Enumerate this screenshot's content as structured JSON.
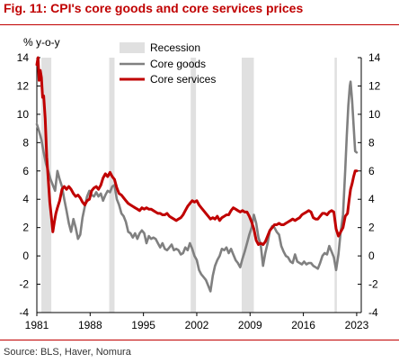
{
  "header": {
    "title": "Fig. 11: CPI's core goods and core services prices"
  },
  "footer": {
    "source": "Source: BLS, Haver, Nomura"
  },
  "chart_data": {
    "type": "line",
    "title": "Fig. 11: CPI's core goods and core services prices",
    "ylabel": "% y-o-y",
    "xlabel": "",
    "ylim": [
      -4,
      14
    ],
    "xlim": [
      1981,
      2023.6
    ],
    "y_ticks": [
      -4,
      -2,
      0,
      2,
      4,
      6,
      8,
      10,
      12,
      14
    ],
    "x_ticks": [
      1981,
      1988,
      1995,
      2002,
      2009,
      2016,
      2023
    ],
    "grid": false,
    "legend": "top-center",
    "recessions": [
      {
        "start": 1981.6,
        "end": 1982.9
      },
      {
        "start": 1990.5,
        "end": 1991.2
      },
      {
        "start": 2001.2,
        "end": 2001.9
      },
      {
        "start": 2007.9,
        "end": 2009.5
      },
      {
        "start": 2020.1,
        "end": 2020.4
      }
    ],
    "series": [
      {
        "name": "Core goods",
        "color": "#808080",
        "points": [
          [
            1981.0,
            9.3
          ],
          [
            1981.3,
            8.8
          ],
          [
            1981.6,
            8.2
          ],
          [
            1981.9,
            7.3
          ],
          [
            1982.2,
            6.5
          ],
          [
            1982.5,
            6.0
          ],
          [
            1982.8,
            5.4
          ],
          [
            1983.1,
            5.0
          ],
          [
            1983.4,
            4.6
          ],
          [
            1983.7,
            6.0
          ],
          [
            1984.0,
            5.4
          ],
          [
            1984.3,
            4.9
          ],
          [
            1984.6,
            4.0
          ],
          [
            1984.9,
            3.2
          ],
          [
            1985.2,
            2.3
          ],
          [
            1985.5,
            1.7
          ],
          [
            1985.8,
            2.6
          ],
          [
            1986.1,
            2.0
          ],
          [
            1986.4,
            1.2
          ],
          [
            1986.7,
            1.5
          ],
          [
            1987.0,
            2.7
          ],
          [
            1987.3,
            3.5
          ],
          [
            1987.6,
            4.2
          ],
          [
            1987.9,
            4.6
          ],
          [
            1988.2,
            4.3
          ],
          [
            1988.5,
            4.2
          ],
          [
            1988.8,
            4.5
          ],
          [
            1989.1,
            4.2
          ],
          [
            1989.4,
            4.4
          ],
          [
            1989.7,
            3.9
          ],
          [
            1990.0,
            4.3
          ],
          [
            1990.3,
            4.6
          ],
          [
            1990.6,
            4.5
          ],
          [
            1990.9,
            4.9
          ],
          [
            1991.2,
            5.0
          ],
          [
            1991.5,
            4.0
          ],
          [
            1991.8,
            3.6
          ],
          [
            1992.1,
            3.0
          ],
          [
            1992.4,
            2.8
          ],
          [
            1992.7,
            2.4
          ],
          [
            1993.0,
            1.7
          ],
          [
            1993.3,
            1.6
          ],
          [
            1993.6,
            1.3
          ],
          [
            1993.9,
            1.6
          ],
          [
            1994.2,
            1.2
          ],
          [
            1994.5,
            1.6
          ],
          [
            1994.8,
            1.8
          ],
          [
            1995.1,
            1.6
          ],
          [
            1995.4,
            0.9
          ],
          [
            1995.7,
            1.4
          ],
          [
            1996.0,
            1.2
          ],
          [
            1996.3,
            1.3
          ],
          [
            1996.6,
            1.2
          ],
          [
            1996.9,
            0.9
          ],
          [
            1997.2,
            0.6
          ],
          [
            1997.5,
            0.9
          ],
          [
            1997.8,
            0.5
          ],
          [
            1998.1,
            0.4
          ],
          [
            1998.4,
            0.6
          ],
          [
            1998.7,
            0.8
          ],
          [
            1999.0,
            0.4
          ],
          [
            1999.3,
            0.5
          ],
          [
            1999.6,
            0.4
          ],
          [
            1999.9,
            0.1
          ],
          [
            2000.2,
            0.2
          ],
          [
            2000.5,
            0.6
          ],
          [
            2000.8,
            0.4
          ],
          [
            2001.1,
            0.9
          ],
          [
            2001.4,
            0.5
          ],
          [
            2001.7,
            0.0
          ],
          [
            2002.0,
            -0.3
          ],
          [
            2002.3,
            -1.0
          ],
          [
            2002.6,
            -1.3
          ],
          [
            2002.9,
            -1.5
          ],
          [
            2003.2,
            -1.7
          ],
          [
            2003.5,
            -2.1
          ],
          [
            2003.8,
            -2.5
          ],
          [
            2004.1,
            -1.4
          ],
          [
            2004.4,
            -0.7
          ],
          [
            2004.7,
            -0.3
          ],
          [
            2005.0,
            0.0
          ],
          [
            2005.3,
            0.5
          ],
          [
            2005.6,
            0.4
          ],
          [
            2005.9,
            0.6
          ],
          [
            2006.2,
            0.2
          ],
          [
            2006.5,
            0.5
          ],
          [
            2006.8,
            0.1
          ],
          [
            2007.1,
            -0.3
          ],
          [
            2007.4,
            -0.5
          ],
          [
            2007.7,
            -0.8
          ],
          [
            2008.0,
            -0.2
          ],
          [
            2008.3,
            0.3
          ],
          [
            2008.6,
            0.9
          ],
          [
            2008.9,
            1.5
          ],
          [
            2009.2,
            2.0
          ],
          [
            2009.5,
            2.9
          ],
          [
            2009.8,
            2.3
          ],
          [
            2010.1,
            1.3
          ],
          [
            2010.4,
            0.8
          ],
          [
            2010.7,
            -0.7
          ],
          [
            2011.0,
            0.2
          ],
          [
            2011.3,
            0.9
          ],
          [
            2011.6,
            1.8
          ],
          [
            2011.9,
            2.1
          ],
          [
            2012.2,
            2.0
          ],
          [
            2012.5,
            1.7
          ],
          [
            2012.8,
            1.5
          ],
          [
            2013.1,
            0.7
          ],
          [
            2013.4,
            0.3
          ],
          [
            2013.7,
            0.0
          ],
          [
            2014.0,
            -0.1
          ],
          [
            2014.3,
            -0.4
          ],
          [
            2014.6,
            -0.5
          ],
          [
            2014.9,
            0.1
          ],
          [
            2015.2,
            -0.4
          ],
          [
            2015.5,
            -0.5
          ],
          [
            2015.8,
            -0.6
          ],
          [
            2016.1,
            -0.4
          ],
          [
            2016.4,
            -0.6
          ],
          [
            2016.7,
            -0.5
          ],
          [
            2017.0,
            -0.5
          ],
          [
            2017.3,
            -0.7
          ],
          [
            2017.6,
            -0.8
          ],
          [
            2017.9,
            -0.9
          ],
          [
            2018.2,
            -0.5
          ],
          [
            2018.5,
            0.0
          ],
          [
            2018.8,
            0.2
          ],
          [
            2019.1,
            0.1
          ],
          [
            2019.4,
            0.7
          ],
          [
            2019.7,
            0.3
          ],
          [
            2020.0,
            -0.1
          ],
          [
            2020.3,
            -1.0
          ],
          [
            2020.6,
            0.1
          ],
          [
            2020.9,
            1.7
          ],
          [
            2021.2,
            2.9
          ],
          [
            2021.5,
            6.1
          ],
          [
            2021.7,
            8.5
          ],
          [
            2021.9,
            10.6
          ],
          [
            2022.1,
            12.0
          ],
          [
            2022.2,
            12.3
          ],
          [
            2022.4,
            11.0
          ],
          [
            2022.6,
            9.2
          ],
          [
            2022.8,
            7.4
          ],
          [
            2023.0,
            7.3
          ]
        ]
      },
      {
        "name": "Core services",
        "color": "#c00000",
        "points": [
          [
            1981.0,
            13.5
          ],
          [
            1981.15,
            14.0
          ],
          [
            1981.3,
            12.4
          ],
          [
            1981.45,
            13.1
          ],
          [
            1981.6,
            12.6
          ],
          [
            1981.75,
            11.2
          ],
          [
            1981.9,
            11.3
          ],
          [
            1982.1,
            9.7
          ],
          [
            1982.3,
            7.0
          ],
          [
            1982.5,
            5.4
          ],
          [
            1982.7,
            3.8
          ],
          [
            1982.9,
            2.8
          ],
          [
            1983.1,
            1.7
          ],
          [
            1983.3,
            2.4
          ],
          [
            1983.5,
            3.0
          ],
          [
            1983.7,
            3.4
          ],
          [
            1984.0,
            3.9
          ],
          [
            1984.3,
            4.7
          ],
          [
            1984.6,
            4.9
          ],
          [
            1984.9,
            4.7
          ],
          [
            1985.2,
            4.9
          ],
          [
            1985.5,
            4.7
          ],
          [
            1985.8,
            4.4
          ],
          [
            1986.1,
            4.2
          ],
          [
            1986.4,
            4.3
          ],
          [
            1986.7,
            4.1
          ],
          [
            1987.0,
            3.8
          ],
          [
            1987.3,
            3.6
          ],
          [
            1987.6,
            3.9
          ],
          [
            1987.9,
            4.0
          ],
          [
            1988.2,
            4.6
          ],
          [
            1988.5,
            4.8
          ],
          [
            1988.8,
            4.9
          ],
          [
            1989.1,
            4.7
          ],
          [
            1989.4,
            5.0
          ],
          [
            1989.7,
            5.5
          ],
          [
            1990.0,
            5.8
          ],
          [
            1990.3,
            5.6
          ],
          [
            1990.6,
            5.9
          ],
          [
            1990.9,
            5.6
          ],
          [
            1991.2,
            5.4
          ],
          [
            1991.5,
            4.8
          ],
          [
            1991.8,
            4.4
          ],
          [
            1992.1,
            4.3
          ],
          [
            1992.4,
            4.1
          ],
          [
            1992.7,
            3.9
          ],
          [
            1993.0,
            3.7
          ],
          [
            1993.3,
            3.6
          ],
          [
            1993.6,
            3.5
          ],
          [
            1993.9,
            3.4
          ],
          [
            1994.2,
            3.3
          ],
          [
            1994.5,
            3.2
          ],
          [
            1994.8,
            3.4
          ],
          [
            1995.1,
            3.3
          ],
          [
            1995.4,
            3.4
          ],
          [
            1995.7,
            3.3
          ],
          [
            1996.0,
            3.3
          ],
          [
            1996.3,
            3.2
          ],
          [
            1996.6,
            3.1
          ],
          [
            1996.9,
            3.0
          ],
          [
            1997.2,
            3.0
          ],
          [
            1997.5,
            2.9
          ],
          [
            1997.8,
            2.9
          ],
          [
            1998.1,
            3.0
          ],
          [
            1998.4,
            2.8
          ],
          [
            1998.7,
            2.7
          ],
          [
            1999.0,
            2.6
          ],
          [
            1999.3,
            2.5
          ],
          [
            1999.6,
            2.6
          ],
          [
            1999.9,
            2.7
          ],
          [
            2000.2,
            2.9
          ],
          [
            2000.5,
            3.2
          ],
          [
            2000.8,
            3.5
          ],
          [
            2001.1,
            3.7
          ],
          [
            2001.4,
            3.9
          ],
          [
            2001.7,
            3.8
          ],
          [
            2002.0,
            3.9
          ],
          [
            2002.3,
            3.6
          ],
          [
            2002.6,
            3.4
          ],
          [
            2002.9,
            3.2
          ],
          [
            2003.2,
            3.0
          ],
          [
            2003.5,
            2.8
          ],
          [
            2003.8,
            2.6
          ],
          [
            2004.1,
            2.7
          ],
          [
            2004.4,
            2.6
          ],
          [
            2004.7,
            2.8
          ],
          [
            2005.0,
            2.5
          ],
          [
            2005.3,
            2.7
          ],
          [
            2005.6,
            2.8
          ],
          [
            2005.9,
            2.9
          ],
          [
            2006.2,
            2.9
          ],
          [
            2006.5,
            3.2
          ],
          [
            2006.8,
            3.4
          ],
          [
            2007.1,
            3.3
          ],
          [
            2007.4,
            3.2
          ],
          [
            2007.7,
            3.1
          ],
          [
            2008.0,
            3.2
          ],
          [
            2008.3,
            3.1
          ],
          [
            2008.6,
            3.1
          ],
          [
            2008.9,
            2.8
          ],
          [
            2009.2,
            2.4
          ],
          [
            2009.5,
            1.9
          ],
          [
            2009.8,
            1.1
          ],
          [
            2010.1,
            0.8
          ],
          [
            2010.4,
            0.9
          ],
          [
            2010.7,
            0.8
          ],
          [
            2011.0,
            1.0
          ],
          [
            2011.3,
            1.4
          ],
          [
            2011.6,
            1.8
          ],
          [
            2011.9,
            2.0
          ],
          [
            2012.2,
            2.2
          ],
          [
            2012.5,
            2.2
          ],
          [
            2012.8,
            2.3
          ],
          [
            2013.1,
            2.2
          ],
          [
            2013.4,
            2.2
          ],
          [
            2013.7,
            2.3
          ],
          [
            2014.0,
            2.4
          ],
          [
            2014.3,
            2.5
          ],
          [
            2014.6,
            2.6
          ],
          [
            2014.9,
            2.5
          ],
          [
            2015.2,
            2.6
          ],
          [
            2015.5,
            2.7
          ],
          [
            2015.8,
            2.9
          ],
          [
            2016.1,
            3.0
          ],
          [
            2016.4,
            3.1
          ],
          [
            2016.7,
            3.2
          ],
          [
            2017.0,
            3.1
          ],
          [
            2017.3,
            2.7
          ],
          [
            2017.6,
            2.6
          ],
          [
            2017.9,
            2.6
          ],
          [
            2018.2,
            2.8
          ],
          [
            2018.5,
            3.0
          ],
          [
            2018.8,
            3.0
          ],
          [
            2019.1,
            2.9
          ],
          [
            2019.4,
            3.1
          ],
          [
            2019.7,
            3.2
          ],
          [
            2020.0,
            3.1
          ],
          [
            2020.3,
            1.9
          ],
          [
            2020.6,
            1.4
          ],
          [
            2020.9,
            1.7
          ],
          [
            2021.2,
            2.0
          ],
          [
            2021.5,
            2.8
          ],
          [
            2021.8,
            3.0
          ],
          [
            2022.0,
            3.9
          ],
          [
            2022.2,
            4.7
          ],
          [
            2022.4,
            5.1
          ],
          [
            2022.6,
            5.6
          ],
          [
            2022.8,
            6.0
          ],
          [
            2023.0,
            6.0
          ]
        ]
      }
    ],
    "legend_items": [
      {
        "label": "Recession",
        "color": "#e0e0e0"
      },
      {
        "label": "Core goods",
        "color": "#808080"
      },
      {
        "label": "Core services",
        "color": "#c00000"
      }
    ]
  }
}
